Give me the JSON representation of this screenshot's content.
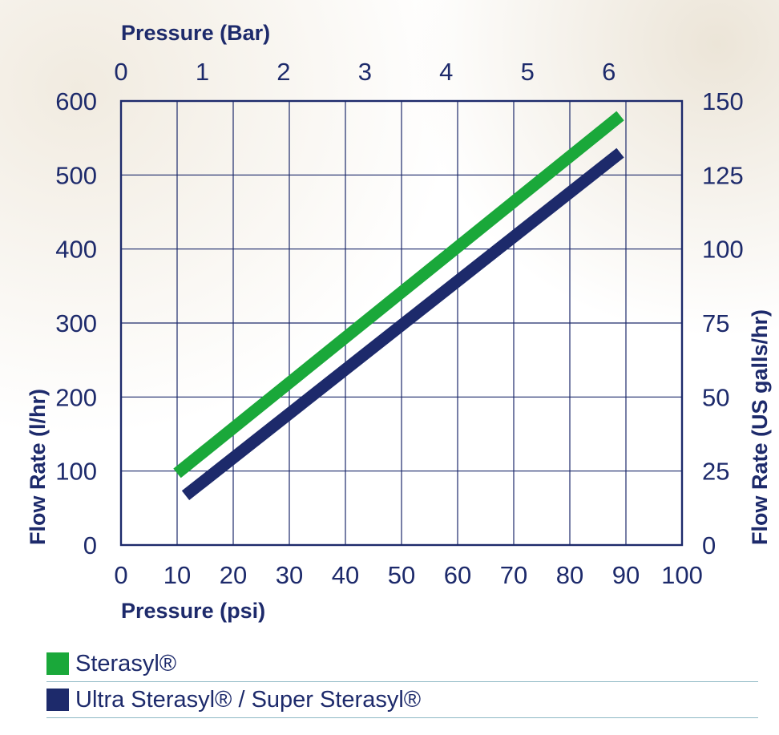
{
  "chart_data": {
    "type": "line",
    "bottom_axis": {
      "label": "Pressure (psi)",
      "range": [
        0,
        100
      ],
      "ticks": [
        0,
        10,
        20,
        30,
        40,
        50,
        60,
        70,
        80,
        90,
        100
      ]
    },
    "top_axis": {
      "label": "Pressure (Bar)",
      "range": [
        0,
        6.9
      ],
      "ticks": [
        0,
        1,
        2,
        3,
        4,
        5,
        6
      ]
    },
    "left_axis": {
      "label": "Flow Rate (l/hr)",
      "range": [
        0,
        600
      ],
      "ticks": [
        0,
        100,
        200,
        300,
        400,
        500,
        600
      ]
    },
    "right_axis": {
      "label": "Flow Rate (US galls/hr)",
      "range": [
        0,
        150
      ],
      "ticks": [
        0,
        25,
        50,
        75,
        100,
        125,
        150
      ]
    },
    "grid": true,
    "legend_position": "bottom",
    "series": [
      {
        "name": "Sterasyl®",
        "color": "#1aa83a",
        "points": [
          [
            10,
            97
          ],
          [
            89,
            580
          ]
        ]
      },
      {
        "name": "Ultra Sterasyl® / Super Sterasyl®",
        "color": "#1d2a6b",
        "points": [
          [
            11.5,
            67
          ],
          [
            89,
            530
          ]
        ]
      }
    ]
  }
}
